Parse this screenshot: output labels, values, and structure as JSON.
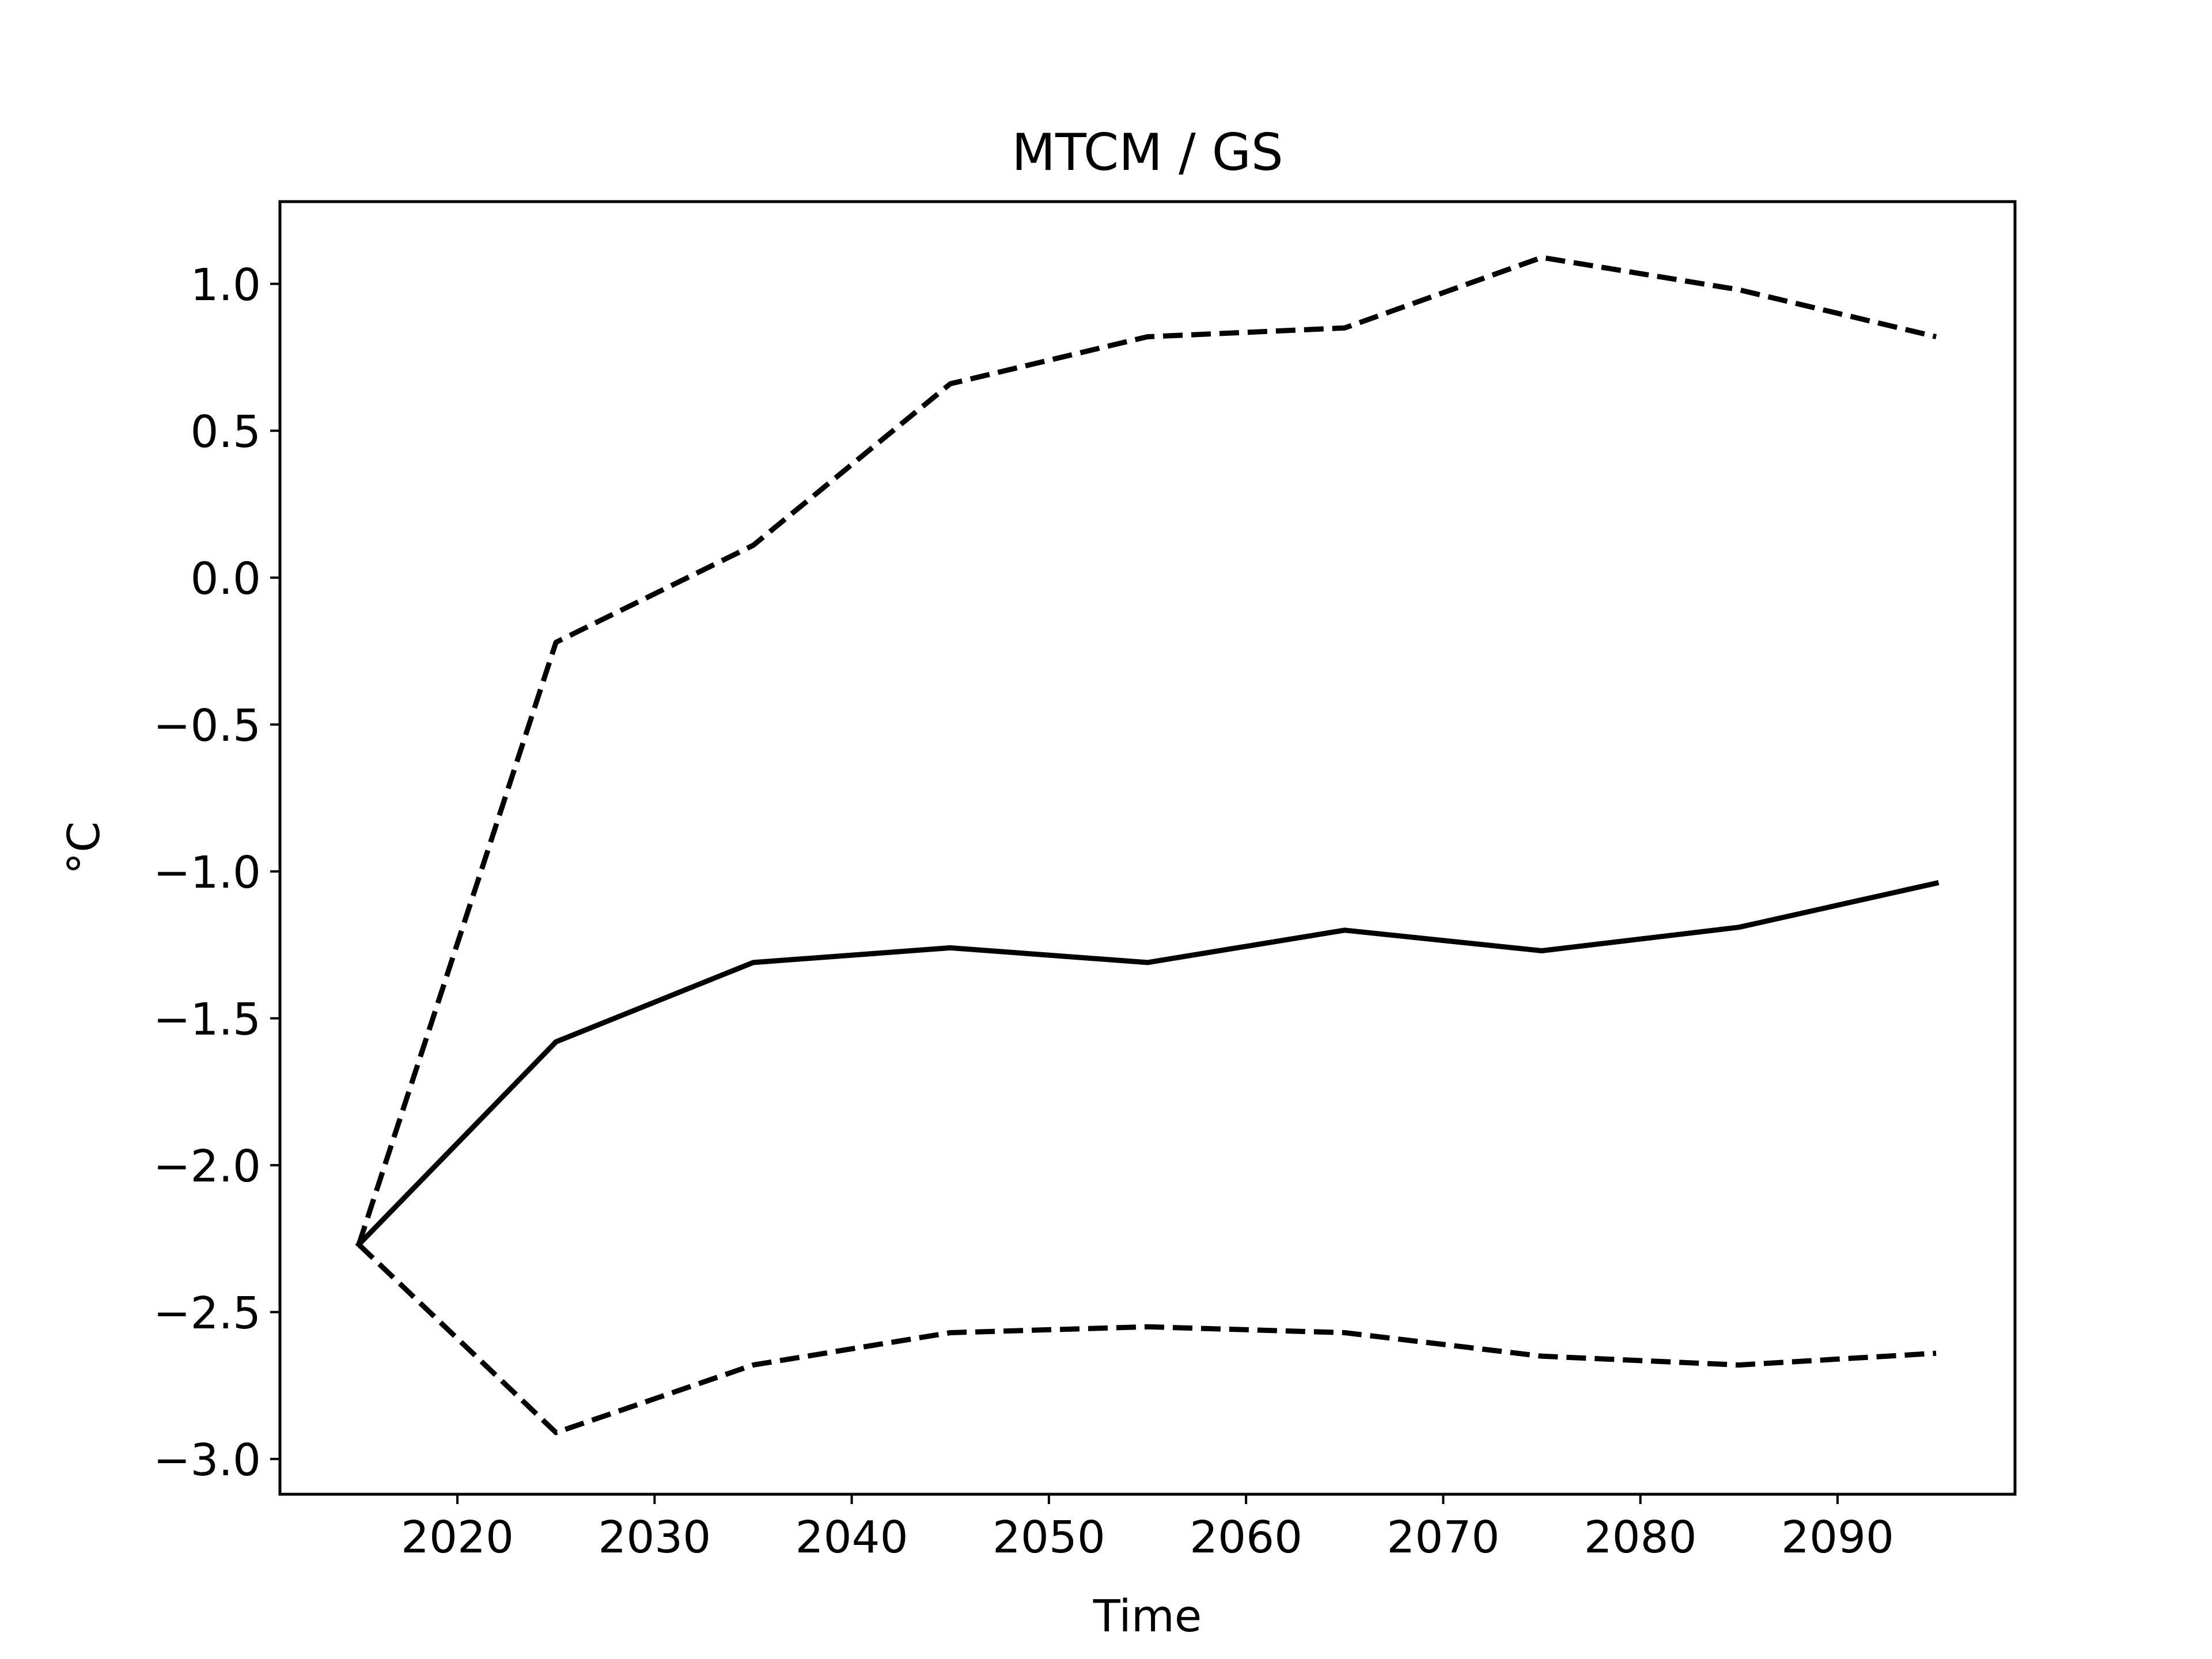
{
  "chart_data": {
    "type": "line",
    "title": "MTCM / GS",
    "xlabel": "Time",
    "ylabel": "°C",
    "xlim": [
      2011.0,
      2099.0
    ],
    "ylim": [
      -3.12,
      1.28
    ],
    "xticks": [
      2020,
      2030,
      2040,
      2050,
      2060,
      2070,
      2080,
      2090
    ],
    "yticks": [
      1.0,
      0.5,
      0.0,
      -0.5,
      -1.0,
      -1.5,
      -2.0,
      -2.5,
      -3.0
    ],
    "xtick_labels": [
      "2020",
      "2030",
      "2040",
      "2050",
      "2060",
      "2070",
      "2080",
      "2090"
    ],
    "ytick_labels": [
      "1.0",
      "0.5",
      "0.0",
      "−0.5",
      "−1.0",
      "−1.5",
      "−2.0",
      "−2.5",
      "−3.0"
    ],
    "grid": false,
    "legend": false,
    "x": [
      2015,
      2025,
      2035,
      2045,
      2055,
      2065,
      2075,
      2085,
      2095
    ],
    "series": [
      {
        "style": "dashed",
        "color": "#000000",
        "values": [
          -2.27,
          -0.22,
          0.11,
          0.66,
          0.82,
          0.85,
          1.09,
          0.98,
          0.82
        ]
      },
      {
        "style": "solid",
        "color": "#000000",
        "values": [
          -2.27,
          -1.58,
          -1.31,
          -1.26,
          -1.31,
          -1.2,
          -1.27,
          -1.19,
          -1.04
        ]
      },
      {
        "style": "dashed",
        "color": "#000000",
        "values": [
          -2.27,
          -2.91,
          -2.68,
          -2.57,
          -2.55,
          -2.57,
          -2.65,
          -2.68,
          -2.64
        ]
      }
    ]
  }
}
